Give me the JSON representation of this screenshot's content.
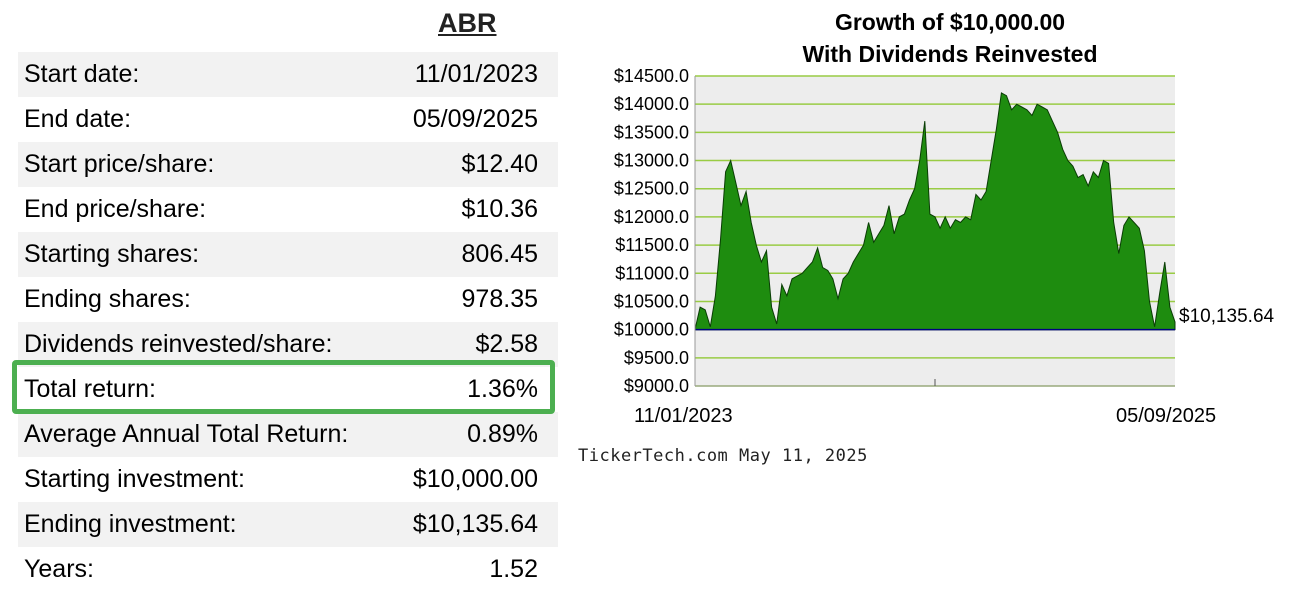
{
  "ticker": "ABR",
  "stats": [
    {
      "label": "Start date:",
      "value": "11/01/2023"
    },
    {
      "label": "End date:",
      "value": "05/09/2025"
    },
    {
      "label": "Start price/share:",
      "value": "$12.40"
    },
    {
      "label": "End price/share:",
      "value": "$10.36"
    },
    {
      "label": "Starting shares:",
      "value": "806.45"
    },
    {
      "label": "Ending shares:",
      "value": "978.35"
    },
    {
      "label": "Dividends reinvested/share:",
      "value": "$2.58"
    },
    {
      "label": "Total return:",
      "value": "1.36%"
    },
    {
      "label": "Average Annual Total Return:",
      "value": "0.89%"
    },
    {
      "label": "Starting investment:",
      "value": "$10,000.00"
    },
    {
      "label": "Ending investment:",
      "value": "$10,135.64"
    },
    {
      "label": "Years:",
      "value": "1.52"
    }
  ],
  "highlight_color": "#4caf50",
  "source": {
    "site": "TickerTech.com",
    "date": "May 11, 2025"
  },
  "chart_data": {
    "type": "area",
    "title_line1": "Growth of $10,000.00",
    "title_line2": "With Dividends Reinvested",
    "x_start_label": "11/01/2023",
    "x_end_label": "05/09/2025",
    "ylim": [
      9000,
      14500
    ],
    "y_ticks": [
      "$14500.0",
      "$14000.0",
      "$13500.0",
      "$13000.0",
      "$12500.0",
      "$12000.0",
      "$11500.0",
      "$11000.0",
      "$10500.0",
      "$10000.0",
      "$9500.0",
      "$9000.0"
    ],
    "baseline": 10000,
    "end_value_label": "$10,135.64",
    "grid": true,
    "fill_color": "#1e8c0f",
    "grid_color": "#99cc44",
    "background_color": "#ededed",
    "series": [
      {
        "values": [
          10000,
          10400,
          10350,
          10050,
          10600,
          11600,
          12800,
          13000,
          12600,
          12200,
          12450,
          11900,
          11500,
          11200,
          11400,
          10400,
          10100,
          10800,
          10600,
          10900,
          10950,
          11000,
          11100,
          11200,
          11450,
          11100,
          11050,
          10900,
          10550,
          10900,
          11000,
          11200,
          11350,
          11500,
          11900,
          11550,
          11700,
          11850,
          12200,
          11700,
          12000,
          12050,
          12300,
          12500,
          13000,
          13700,
          12050,
          12000,
          11800,
          12000,
          11800,
          11950,
          11900,
          12000,
          11950,
          12400,
          12300,
          12450,
          13000,
          13550,
          14200,
          14150,
          13900,
          14000,
          13950,
          13900,
          13800,
          14000,
          13950,
          13900,
          13700,
          13500,
          13200,
          13000,
          12900,
          12700,
          12750,
          12550,
          12800,
          12700,
          13000,
          12950,
          11900,
          11350,
          11850,
          12000,
          11900,
          11800,
          11400,
          10500,
          10050,
          10650,
          11200,
          10400,
          10135.64
        ]
      }
    ]
  }
}
